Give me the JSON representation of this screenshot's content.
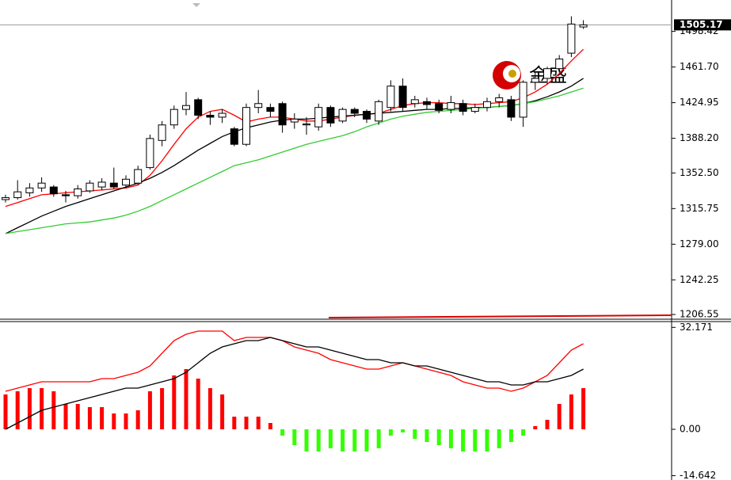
{
  "chart_data": [
    {
      "type": "candlestick",
      "open": [
        1325,
        1327,
        1332,
        1337,
        1338,
        1330,
        1329,
        1334,
        1338,
        1342,
        1340,
        1342,
        1358,
        1386,
        1402,
        1418,
        1428,
        1412,
        1410,
        1398,
        1382,
        1420,
        1420,
        1424,
        1405,
        1402,
        1400,
        1420,
        1406,
        1418,
        1416,
        1406,
        1420,
        1442,
        1424,
        1426,
        1424,
        1418,
        1424,
        1416,
        1420,
        1426,
        1428,
        1410,
        1446,
        1450,
        1460,
        1476,
        1503
      ],
      "high": [
        1330,
        1345,
        1342,
        1348,
        1340,
        1334,
        1340,
        1345,
        1347,
        1358,
        1350,
        1360,
        1392,
        1406,
        1422,
        1436,
        1430,
        1416,
        1418,
        1400,
        1424,
        1438,
        1424,
        1426,
        1414,
        1410,
        1424,
        1422,
        1420,
        1420,
        1418,
        1428,
        1448,
        1450,
        1432,
        1430,
        1428,
        1432,
        1428,
        1424,
        1430,
        1434,
        1432,
        1448,
        1456,
        1462,
        1474,
        1514,
        1510
      ],
      "low": [
        1322,
        1325,
        1328,
        1333,
        1328,
        1322,
        1326,
        1332,
        1335,
        1336,
        1337,
        1340,
        1356,
        1380,
        1398,
        1412,
        1408,
        1402,
        1404,
        1380,
        1380,
        1414,
        1410,
        1394,
        1398,
        1392,
        1396,
        1400,
        1404,
        1410,
        1404,
        1402,
        1416,
        1416,
        1420,
        1418,
        1414,
        1414,
        1412,
        1414,
        1416,
        1420,
        1406,
        1400,
        1438,
        1444,
        1456,
        1472,
        1501
      ],
      "close": [
        1327,
        1333,
        1337,
        1342,
        1331,
        1329,
        1336,
        1342,
        1343,
        1338,
        1346,
        1356,
        1388,
        1402,
        1418,
        1422,
        1412,
        1410,
        1414,
        1382,
        1420,
        1424,
        1416,
        1402,
        1408,
        1403,
        1420,
        1404,
        1418,
        1414,
        1408,
        1426,
        1442,
        1420,
        1428,
        1423,
        1417,
        1425,
        1416,
        1420,
        1426,
        1430,
        1410,
        1446,
        1450,
        1460,
        1470,
        1506,
        1505.17
      ],
      "up_color": "#ffffff",
      "down_color": "#000000",
      "series": [
        {
          "color": "#ff0000",
          "values": [
            1318,
            1322,
            1326,
            1330,
            1331,
            1332,
            1333,
            1334,
            1335,
            1336,
            1337,
            1340,
            1350,
            1365,
            1382,
            1398,
            1410,
            1416,
            1418,
            1412,
            1405,
            1408,
            1410,
            1410,
            1408,
            1406,
            1406,
            1408,
            1410,
            1412,
            1413,
            1414,
            1418,
            1422,
            1424,
            1425,
            1425,
            1424,
            1424,
            1423,
            1424,
            1425,
            1426,
            1430,
            1436,
            1444,
            1455,
            1468,
            1480
          ]
        },
        {
          "color": "#000000",
          "values": [
            1290,
            1296,
            1302,
            1308,
            1313,
            1318,
            1322,
            1326,
            1330,
            1334,
            1338,
            1342,
            1347,
            1353,
            1360,
            1368,
            1376,
            1383,
            1390,
            1395,
            1399,
            1402,
            1405,
            1407,
            1408,
            1408,
            1409,
            1410,
            1411,
            1412,
            1413,
            1414,
            1415,
            1416,
            1417,
            1418,
            1418,
            1419,
            1419,
            1420,
            1420,
            1421,
            1422,
            1424,
            1427,
            1431,
            1436,
            1442,
            1450
          ]
        },
        {
          "color": "#33cc33",
          "values": [
            1290,
            1292,
            1294,
            1296,
            1298,
            1300,
            1301,
            1302,
            1304,
            1306,
            1309,
            1313,
            1318,
            1324,
            1330,
            1336,
            1342,
            1348,
            1354,
            1360,
            1363,
            1366,
            1370,
            1374,
            1378,
            1382,
            1385,
            1388,
            1391,
            1395,
            1400,
            1404,
            1408,
            1411,
            1413,
            1415,
            1416,
            1417,
            1418,
            1419,
            1420,
            1421,
            1422,
            1424,
            1426,
            1429,
            1432,
            1436,
            1440
          ]
        }
      ],
      "ylim": [
        1202.5,
        1530.8
      ],
      "yticks": [
        {
          "value": 1498.42,
          "label": "1498.42"
        },
        {
          "value": 1461.7,
          "label": "1461.70"
        },
        1424.95,
        {
          "value": 1388.2,
          "label": "1388.20"
        },
        {
          "value": 1352.5,
          "label": "1352.50"
        },
        1315.75,
        {
          "value": 1279,
          "label": "1279.00"
        },
        1242.25,
        1206.55
      ],
      "watermark": "金盛"
    },
    {
      "type": "macd",
      "values": [
        11,
        12,
        13,
        13,
        12,
        8,
        8,
        7,
        7,
        5,
        5,
        6,
        12,
        13,
        17,
        19,
        16,
        13,
        11,
        4,
        4,
        4,
        2,
        -2,
        -5,
        -7,
        -7,
        -6,
        -7,
        -7,
        -7,
        -6,
        -2,
        -1,
        -3,
        -4,
        -5,
        -6,
        -7,
        -7,
        -7,
        -6,
        -4,
        -2,
        1,
        3,
        8,
        11,
        13
      ],
      "positive_color": "#ff0000",
      "negative_color": "#33ff00",
      "series": [
        {
          "color": "#ff0000",
          "values": [
            12,
            13,
            14,
            15,
            15,
            15,
            15,
            15,
            16,
            16,
            17,
            18,
            20,
            24,
            28,
            30,
            31,
            31,
            31,
            28,
            29,
            29,
            29,
            28,
            26,
            25,
            24,
            22,
            21,
            20,
            19,
            19,
            20,
            21,
            20,
            19,
            18,
            17,
            15,
            14,
            13,
            13,
            12,
            13,
            15,
            17,
            21,
            25,
            27
          ]
        },
        {
          "color": "#000000",
          "values": [
            0,
            2,
            4,
            6,
            7,
            8,
            9,
            10,
            11,
            12,
            13,
            13,
            14,
            15,
            16,
            18,
            21,
            24,
            26,
            27,
            28,
            28,
            29,
            28,
            27,
            26,
            26,
            25,
            24,
            23,
            22,
            22,
            21,
            21,
            20,
            20,
            19,
            18,
            17,
            16,
            15,
            15,
            14,
            14,
            15,
            15,
            16,
            17,
            19
          ]
        }
      ],
      "ylim": [
        -16,
        34
      ],
      "yticks": [
        32.171,
        {
          "value": 0,
          "label": "0.00"
        },
        -14.642
      ]
    }
  ]
}
